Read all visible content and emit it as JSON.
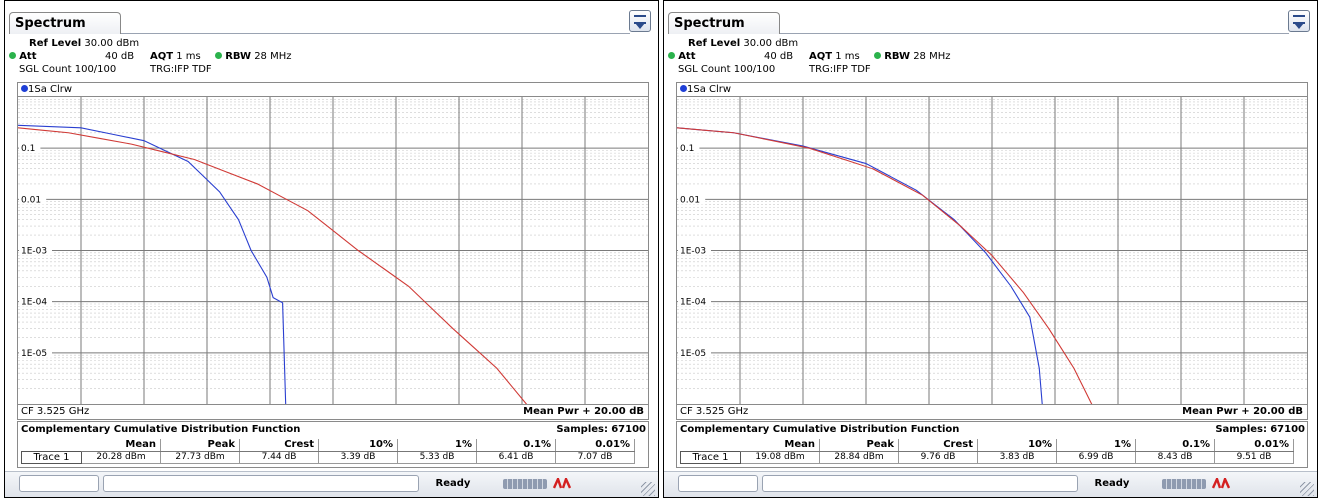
{
  "panels": [
    {
      "tab_title": "Spectrum",
      "settings": {
        "ref_level_label": "Ref Level",
        "ref_level_value": "30.00 dBm",
        "att_label": "Att",
        "att_value": "40 dB",
        "aqt_label": "AQT",
        "aqt_value": "1 ms",
        "rbw_label": "RBW",
        "rbw_value": "28 MHz",
        "sgl_count": "SGL Count 100/100",
        "trigger": "TRG:IFP TDF"
      },
      "trace_indicator": "1Sa Clrw",
      "y_axis_labels": [
        "0.1",
        "0.01",
        "1E-03",
        "1E-04",
        "1E-05"
      ],
      "cf": "CF 3.525 GHz",
      "mean_pwr": "Mean Pwr + 20.00 dB",
      "ccdf": {
        "title": "Complementary Cumulative Distribution Function",
        "samples_label": "Samples:",
        "samples_value": "67100",
        "headers": [
          "Mean",
          "Peak",
          "Crest",
          "10%",
          "1%",
          "0.1%",
          "0.01%"
        ],
        "row_label": "Trace 1",
        "values": [
          "20.28 dBm",
          "27.73 dBm",
          "7.44 dB",
          "3.39 dB",
          "5.33 dB",
          "6.41 dB",
          "7.07 dB"
        ]
      },
      "status_ready": "Ready",
      "chart_data": {
        "type": "line",
        "y_scale": "log",
        "ylim": [
          1e-06,
          1
        ],
        "x_divisions": 10,
        "series": [
          {
            "color": "#2a3fd0",
            "y_level": [
              0.28,
              0.25,
              0.14,
              0.055,
              0.014,
              0.004,
              0.001,
              0.0003,
              0.00012,
              9.5e-05,
              9e-07
            ],
            "x_div": [
              0,
              1,
              2,
              2.7,
              3.2,
              3.5,
              3.7,
              3.95,
              4.05,
              4.2,
              4.25
            ]
          },
          {
            "color": "#d03a36",
            "y_level": [
              0.25,
              0.2,
              0.12,
              0.06,
              0.02,
              0.006,
              0.001,
              0.0002,
              3e-05,
              5e-06,
              9e-07
            ],
            "x_div": [
              0,
              0.8,
              1.8,
              2.8,
              3.8,
              4.6,
              5.4,
              6.2,
              6.9,
              7.6,
              8.1
            ]
          }
        ]
      }
    },
    {
      "tab_title": "Spectrum",
      "settings": {
        "ref_level_label": "Ref Level",
        "ref_level_value": "30.00 dBm",
        "att_label": "Att",
        "att_value": "40 dB",
        "aqt_label": "AQT",
        "aqt_value": "1 ms",
        "rbw_label": "RBW",
        "rbw_value": "28 MHz",
        "sgl_count": "SGL Count 100/100",
        "trigger": "TRG:IFP TDF"
      },
      "trace_indicator": "1Sa Clrw",
      "y_axis_labels": [
        "0.1",
        "0.01",
        "1E-03",
        "1E-04",
        "1E-05"
      ],
      "cf": "CF 3.525 GHz",
      "mean_pwr": "Mean Pwr + 20.00 dB",
      "ccdf": {
        "title": "Complementary Cumulative Distribution Function",
        "samples_label": "Samples:",
        "samples_value": "67100",
        "headers": [
          "Mean",
          "Peak",
          "Crest",
          "10%",
          "1%",
          "0.1%",
          "0.01%"
        ],
        "row_label": "Trace 1",
        "values": [
          "19.08 dBm",
          "28.84 dBm",
          "9.76 dB",
          "3.83 dB",
          "6.99 dB",
          "8.43 dB",
          "9.51 dB"
        ]
      },
      "status_ready": "Ready",
      "chart_data": {
        "type": "line",
        "y_scale": "log",
        "ylim": [
          1e-06,
          1
        ],
        "x_divisions": 10,
        "series": [
          {
            "color": "#2a3fd0",
            "y_level": [
              0.25,
              0.2,
              0.11,
              0.05,
              0.015,
              0.004,
              0.0009,
              0.0002,
              5e-05,
              5e-06,
              9e-07
            ],
            "x_div": [
              0,
              0.9,
              2.0,
              3.0,
              3.8,
              4.4,
              4.9,
              5.3,
              5.6,
              5.75,
              5.8
            ]
          },
          {
            "color": "#d03a36",
            "y_level": [
              0.25,
              0.2,
              0.1,
              0.04,
              0.012,
              0.003,
              0.0008,
              0.00015,
              3e-05,
              5e-06,
              9e-07
            ],
            "x_div": [
              0,
              0.9,
              2.1,
              3.1,
              3.9,
              4.5,
              5.0,
              5.5,
              5.9,
              6.3,
              6.6
            ]
          }
        ]
      }
    }
  ]
}
